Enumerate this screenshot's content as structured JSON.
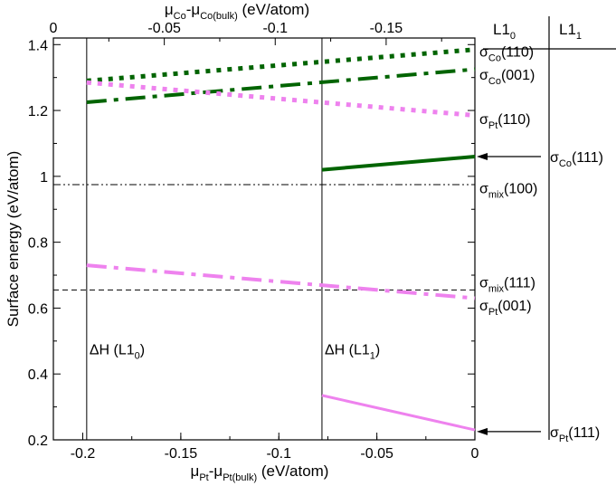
{
  "chart_data": {
    "type": "line",
    "ylabel": "Surface energy (eV/atom)",
    "xlabel": {
      "main": "μ",
      "sub1": "Pt",
      "mid": "-μ",
      "sub2": "Pt(bulk)",
      "tail": " (eV/atom)"
    },
    "x2label": {
      "main": "μ",
      "sub1": "Co",
      "mid": "-μ",
      "sub2": "Co(bulk)",
      "tail": " (eV/atom)"
    },
    "xlim": [
      -0.215,
      0
    ],
    "x2lim": [
      0,
      -0.19
    ],
    "ylim": [
      0.2,
      1.42
    ],
    "xticks": [
      {
        "v": -0.2,
        "label": "-0.2"
      },
      {
        "v": -0.15,
        "label": "-0.15"
      },
      {
        "v": -0.1,
        "label": "-0.1"
      },
      {
        "v": -0.05,
        "label": "-0.05"
      },
      {
        "v": 0,
        "label": "0"
      }
    ],
    "x2ticks": [
      {
        "v": 0,
        "label": "0"
      },
      {
        "v": -0.05,
        "label": "-0.05"
      },
      {
        "v": -0.1,
        "label": "-0.1"
      },
      {
        "v": -0.15,
        "label": "-0.15"
      }
    ],
    "yticks": [
      {
        "v": 0.2,
        "label": "0.2"
      },
      {
        "v": 0.4,
        "label": "0.4"
      },
      {
        "v": 0.6,
        "label": "0.6"
      },
      {
        "v": 0.8,
        "label": "0.8"
      },
      {
        "v": 1.0,
        "label": "1"
      },
      {
        "v": 1.2,
        "label": "1.2"
      },
      {
        "v": 1.4,
        "label": "1.4"
      }
    ],
    "vlines": [
      {
        "x": -0.198,
        "label": "ΔH (L1",
        "sub": "0",
        "tail": ")",
        "label_y": 0.46
      },
      {
        "x": -0.078,
        "label": "ΔH (L1",
        "sub": "1",
        "tail": ")",
        "label_y": 0.46
      }
    ],
    "hlines": [
      {
        "name": "sigma-mix-100",
        "y": 0.975,
        "style": "dashdotdot",
        "color": "#000000"
      },
      {
        "name": "sigma-mix-111",
        "y": 0.655,
        "style": "dashed",
        "color": "#000000"
      }
    ],
    "series": [
      {
        "name": "sigma-co-110",
        "x": [
          -0.198,
          0
        ],
        "y": [
          1.29,
          1.385
        ],
        "style": "dotted",
        "color": "#006400",
        "width": 5
      },
      {
        "name": "sigma-co-001",
        "x": [
          -0.198,
          0
        ],
        "y": [
          1.225,
          1.325
        ],
        "style": "dashdot",
        "color": "#006400",
        "width": 4
      },
      {
        "name": "sigma-pt-110",
        "x": [
          -0.198,
          0
        ],
        "y": [
          1.285,
          1.185
        ],
        "style": "dotted",
        "color": "#ee82ee",
        "width": 5
      },
      {
        "name": "sigma-co-111",
        "x": [
          -0.078,
          0
        ],
        "y": [
          1.02,
          1.06
        ],
        "style": "solid",
        "color": "#006400",
        "width": 4
      },
      {
        "name": "sigma-pt-001",
        "x": [
          -0.198,
          0
        ],
        "y": [
          0.73,
          0.63
        ],
        "style": "dashdot",
        "color": "#ee82ee",
        "width": 4
      },
      {
        "name": "sigma-pt-111",
        "x": [
          -0.078,
          0
        ],
        "y": [
          0.335,
          0.23
        ],
        "style": "solid",
        "color": "#ee82ee",
        "width": 3
      }
    ],
    "right_labels": [
      {
        "name": "label-sigma-co-110",
        "y": 1.38,
        "sub": "Co",
        "tail": "(110)"
      },
      {
        "name": "label-sigma-co-001",
        "y": 1.31,
        "sub": "Co",
        "tail": "(001)"
      },
      {
        "name": "label-sigma-pt-110",
        "y": 1.175,
        "sub": "Pt",
        "tail": "(110)"
      },
      {
        "name": "label-sigma-mix-100",
        "y": 0.965,
        "sub": "mix",
        "tail": "(100)"
      },
      {
        "name": "label-sigma-mix-111",
        "y": 0.68,
        "sub": "mix",
        "tail": "(111)"
      },
      {
        "name": "label-sigma-pt-001",
        "y": 0.61,
        "sub": "Pt",
        "tail": "(001)"
      }
    ],
    "arrow_labels": [
      {
        "name": "label-sigma-co-111",
        "y": 1.06,
        "sub": "Co",
        "tail": "(111)"
      },
      {
        "name": "label-sigma-pt-111",
        "y": 0.225,
        "sub": "Pt",
        "tail": "(111)"
      }
    ],
    "phase_headers": [
      {
        "name": "header-l10",
        "text": "L1",
        "sub": "0"
      },
      {
        "name": "header-l11",
        "text": "L1",
        "sub": "1"
      }
    ],
    "sigma": "σ"
  }
}
